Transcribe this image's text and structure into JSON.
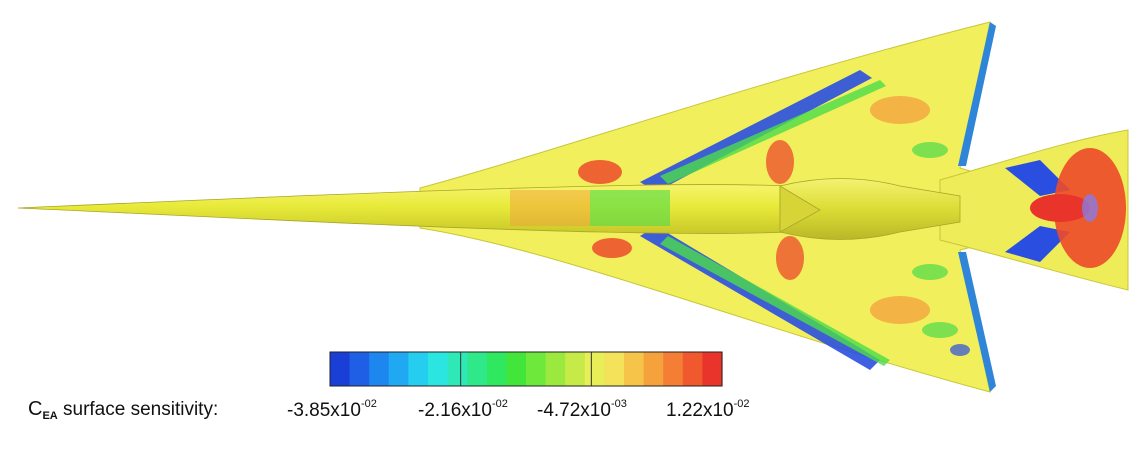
{
  "colorbar": {
    "symbol": "C",
    "subscript": "EA",
    "title_suffix": " surface sensitivity:",
    "ticks": [
      {
        "mantissa": "-3.85x10",
        "exponent": "-02"
      },
      {
        "mantissa": "-2.16x10",
        "exponent": "-02"
      },
      {
        "mantissa": "-4.72x10",
        "exponent": "-03"
      },
      {
        "mantissa": "1.22x10",
        "exponent": "-02"
      }
    ],
    "colors": [
      "#1a3fd6",
      "#1f5fe6",
      "#1e86ef",
      "#20a8f2",
      "#25cdef",
      "#2be6e0",
      "#2ee8b8",
      "#2fe88a",
      "#2fe860",
      "#42e63a",
      "#6ee83a",
      "#9be83e",
      "#c6ea48",
      "#e8ee58",
      "#f4e25a",
      "#f6c448",
      "#f6a23c",
      "#f47e34",
      "#f0582e",
      "#e8342a"
    ]
  },
  "surface": {
    "base_color": "#f0ee5a",
    "fuselage_color": "#e6e83e",
    "hot_color": "#ec4a2a",
    "warm_color": "#f39a3c",
    "cool_color": "#2a4fe0",
    "green_color": "#4cdc4a"
  }
}
